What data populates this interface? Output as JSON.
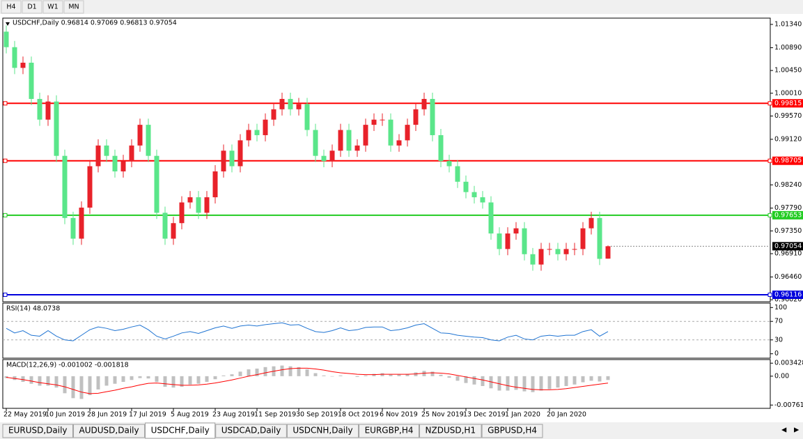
{
  "timeframes": [
    "H4",
    "D1",
    "W1",
    "MN"
  ],
  "tabs": [
    "EURUSD,Daily",
    "AUDUSD,Daily",
    "USDCHF,Daily",
    "USDCAD,Daily",
    "USDCNH,Daily",
    "EURGBP,H4",
    "NZDUSD,H1",
    "GBPUSD,H4"
  ],
  "active_tab": 2,
  "chart_data": [
    {
      "type": "candlestick",
      "title": "USDCHF,Daily  0.96814 0.97069 0.96813 0.97054",
      "up_color": "#e8222a",
      "down_color": "#5ae68a",
      "categories": [
        "22 May 2019",
        null,
        null,
        null,
        null,
        "10 Jun 2019",
        null,
        null,
        null,
        null,
        "28 Jun 2019",
        null,
        null,
        null,
        null,
        "17 Jul 2019",
        null,
        null,
        null,
        null,
        "5 Aug 2019",
        null,
        null,
        null,
        null,
        "23 Aug 2019",
        null,
        null,
        null,
        null,
        "11 Sep 2019",
        null,
        null,
        null,
        null,
        "30 Sep 2019",
        null,
        null,
        null,
        null,
        "18 Oct 2019",
        null,
        null,
        null,
        null,
        "6 Nov 2019",
        null,
        null,
        null,
        null,
        "25 Nov 2019",
        null,
        null,
        null,
        null,
        "13 Dec 2019",
        null,
        null,
        null,
        null,
        "1 Jan 2020",
        null,
        null,
        null,
        null,
        "20 Jan 2020",
        null,
        null,
        null,
        null,
        null,
        null,
        null
      ],
      "values": [
        [
          1.012,
          1.0132,
          1.0078,
          1.009
        ],
        [
          1.009,
          1.0102,
          1.0038,
          1.005
        ],
        [
          1.005,
          1.0072,
          1.0038,
          1.006
        ],
        [
          1.006,
          1.0072,
          0.9978,
          0.999
        ],
        [
          0.999,
          1.0002,
          0.9938,
          0.995
        ],
        [
          0.995,
          0.9997,
          0.9938,
          0.9985
        ],
        [
          0.9985,
          0.9997,
          0.9868,
          0.988
        ],
        [
          0.988,
          0.9892,
          0.9748,
          0.976
        ],
        [
          0.976,
          0.9772,
          0.9708,
          0.972
        ],
        [
          0.972,
          0.9792,
          0.9708,
          0.978
        ],
        [
          0.978,
          0.9872,
          0.9768,
          0.986
        ],
        [
          0.986,
          0.9912,
          0.9848,
          0.99
        ],
        [
          0.99,
          0.9912,
          0.9868,
          0.988
        ],
        [
          0.988,
          0.9892,
          0.9838,
          0.985
        ],
        [
          0.985,
          0.9882,
          0.9838,
          0.987
        ],
        [
          0.987,
          0.9912,
          0.9858,
          0.99
        ],
        [
          0.99,
          0.9952,
          0.9888,
          0.994
        ],
        [
          0.994,
          0.9952,
          0.9868,
          0.988
        ],
        [
          0.988,
          0.9892,
          0.9758,
          0.977
        ],
        [
          0.977,
          0.9782,
          0.9708,
          0.972
        ],
        [
          0.972,
          0.9762,
          0.9708,
          0.975
        ],
        [
          0.975,
          0.9802,
          0.9738,
          0.979
        ],
        [
          0.979,
          0.9812,
          0.9778,
          0.98
        ],
        [
          0.98,
          0.9812,
          0.9758,
          0.977
        ],
        [
          0.977,
          0.9812,
          0.9758,
          0.98
        ],
        [
          0.98,
          0.9862,
          0.9788,
          0.985
        ],
        [
          0.985,
          0.9902,
          0.9838,
          0.989
        ],
        [
          0.989,
          0.9902,
          0.9848,
          0.986
        ],
        [
          0.986,
          0.9922,
          0.9848,
          0.991
        ],
        [
          0.991,
          0.9942,
          0.9898,
          0.993
        ],
        [
          0.993,
          0.9942,
          0.9908,
          0.992
        ],
        [
          0.992,
          0.9962,
          0.9908,
          0.995
        ],
        [
          0.995,
          0.9982,
          0.9938,
          0.997
        ],
        [
          0.997,
          1.0002,
          0.9958,
          0.999
        ],
        [
          0.999,
          1.0002,
          0.9958,
          0.997
        ],
        [
          0.997,
          0.9992,
          0.9958,
          0.998
        ],
        [
          0.998,
          0.9992,
          0.9918,
          0.993
        ],
        [
          0.993,
          0.9942,
          0.9868,
          0.988
        ],
        [
          0.988,
          0.9892,
          0.9858,
          0.987
        ],
        [
          0.987,
          0.9902,
          0.9858,
          0.989
        ],
        [
          0.989,
          0.9942,
          0.9878,
          0.993
        ],
        [
          0.993,
          0.9942,
          0.9878,
          0.989
        ],
        [
          0.989,
          0.9912,
          0.9878,
          0.99
        ],
        [
          0.99,
          0.9952,
          0.9888,
          0.994
        ],
        [
          0.994,
          0.9962,
          0.9928,
          0.995
        ],
        [
          0.995,
          0.9962,
          0.9938,
          0.995
        ],
        [
          0.995,
          0.9962,
          0.9888,
          0.99
        ],
        [
          0.99,
          0.9922,
          0.9888,
          0.991
        ],
        [
          0.991,
          0.9952,
          0.9898,
          0.994
        ],
        [
          0.994,
          0.9982,
          0.9928,
          0.997
        ],
        [
          0.997,
          1.0002,
          0.9958,
          0.999
        ],
        [
          0.999,
          1.0002,
          0.9908,
          0.992
        ],
        [
          0.992,
          0.9932,
          0.9858,
          0.987
        ],
        [
          0.987,
          0.9882,
          0.9848,
          0.986
        ],
        [
          0.986,
          0.9872,
          0.9818,
          0.983
        ],
        [
          0.983,
          0.9842,
          0.9798,
          0.981
        ],
        [
          0.981,
          0.9822,
          0.9788,
          0.98
        ],
        [
          0.98,
          0.9812,
          0.9778,
          0.979
        ],
        [
          0.979,
          0.9802,
          0.9718,
          0.973
        ],
        [
          0.973,
          0.9742,
          0.9688,
          0.97
        ],
        [
          0.97,
          0.9742,
          0.9688,
          0.973
        ],
        [
          0.973,
          0.9752,
          0.9718,
          0.974
        ],
        [
          0.974,
          0.9752,
          0.9678,
          0.969
        ],
        [
          0.969,
          0.9702,
          0.9658,
          0.967
        ],
        [
          0.967,
          0.9712,
          0.9658,
          0.97
        ],
        [
          0.97,
          0.9712,
          0.9688,
          0.97
        ],
        [
          0.97,
          0.9712,
          0.9678,
          0.969
        ],
        [
          0.969,
          0.9712,
          0.9678,
          0.97
        ],
        [
          0.97,
          0.9712,
          0.9688,
          0.97
        ],
        [
          0.97,
          0.9752,
          0.9688,
          0.974
        ],
        [
          0.974,
          0.9772,
          0.9728,
          0.976
        ],
        [
          0.976,
          0.9772,
          0.9669,
          0.9681
        ],
        [
          0.96814,
          0.97069,
          0.96813,
          0.97054
        ]
      ],
      "ylim": [
        0.95995,
        1.01448
      ],
      "yticks": [
        {
          "value": 1.0134,
          "label": "1.01340"
        },
        {
          "value": 1.0089,
          "label": "1.00890"
        },
        {
          "value": 1.0045,
          "label": "1.00450"
        },
        {
          "value": 1.0001,
          "label": "1.00010"
        },
        {
          "value": 0.9957,
          "label": "0.99570"
        },
        {
          "value": 0.9912,
          "label": "0.99120"
        },
        {
          "value": 0.9824,
          "label": "0.98240"
        },
        {
          "value": 0.9779,
          "label": "0.97790"
        },
        {
          "value": 0.9735,
          "label": "0.97350"
        },
        {
          "value": 0.9691,
          "label": "0.96910"
        },
        {
          "value": 0.9646,
          "label": "0.96460"
        },
        {
          "value": 0.9602,
          "label": "0.96020"
        }
      ],
      "levels": [
        {
          "value": 0.99815,
          "color": "#ff0000"
        },
        {
          "value": 0.98705,
          "color": "#ff0000"
        },
        {
          "value": 0.97653,
          "color": "#22cc22"
        },
        {
          "value": 0.96116,
          "color": "#0000dd"
        }
      ]
    },
    {
      "type": "line",
      "title": "RSI(14) 48.0738",
      "color": "#1e73d2",
      "values": [
        55,
        45,
        50,
        40,
        38,
        50,
        38,
        30,
        28,
        40,
        52,
        58,
        55,
        50,
        53,
        58,
        62,
        52,
        38,
        32,
        38,
        45,
        48,
        44,
        50,
        56,
        60,
        55,
        60,
        62,
        60,
        63,
        65,
        67,
        62,
        63,
        55,
        48,
        46,
        50,
        56,
        50,
        52,
        57,
        58,
        58,
        50,
        52,
        56,
        62,
        65,
        55,
        45,
        44,
        40,
        38,
        36,
        35,
        30,
        28,
        36,
        40,
        32,
        30,
        38,
        40,
        38,
        40,
        40,
        48,
        52,
        38,
        48.0738
      ],
      "ylim": [
        -8,
        108
      ],
      "yticks": [
        100,
        70,
        30,
        0
      ],
      "dashed_levels": [
        70,
        30
      ]
    },
    {
      "type": "combo",
      "title": "MACD(12,26,9) -0.001002 -0.001818",
      "series": [
        {
          "type": "bar",
          "color": "#c0c0c0",
          "values": [
            -0.0005,
            -0.001,
            -0.0015,
            -0.002,
            -0.0025,
            -0.0025,
            -0.003,
            -0.0045,
            -0.0058,
            -0.006,
            -0.005,
            -0.0035,
            -0.0025,
            -0.002,
            -0.0015,
            -0.001,
            -0.0005,
            -0.0006,
            -0.0015,
            -0.0028,
            -0.003,
            -0.0028,
            -0.0022,
            -0.002,
            -0.0015,
            -0.0008,
            0.0002,
            0.0005,
            0.0012,
            0.0018,
            0.002,
            0.0024,
            0.0026,
            0.0028,
            0.0026,
            0.0024,
            0.0018,
            0.0008,
            0.0002,
            -0.0001,
            0.0002,
            0,
            -0.0002,
            0.0002,
            0.0006,
            0.0008,
            0.0004,
            0.0004,
            0.0006,
            0.001,
            0.0014,
            0.0012,
            0.0004,
            -0.0004,
            -0.0012,
            -0.0018,
            -0.0022,
            -0.0026,
            -0.0032,
            -0.0038,
            -0.0038,
            -0.0036,
            -0.004,
            -0.0042,
            -0.0038,
            -0.0034,
            -0.003,
            -0.0026,
            -0.0022,
            -0.0016,
            -0.0012,
            -0.0014,
            -0.001002
          ]
        },
        {
          "type": "line",
          "color": "#ff0000",
          "values": [
            -0.0003,
            -0.0006,
            -0.0009,
            -0.0013,
            -0.0017,
            -0.002,
            -0.0023,
            -0.0028,
            -0.0035,
            -0.0042,
            -0.0046,
            -0.0045,
            -0.0041,
            -0.0037,
            -0.0032,
            -0.0028,
            -0.0023,
            -0.0019,
            -0.0018,
            -0.002,
            -0.0022,
            -0.0024,
            -0.0024,
            -0.0023,
            -0.0021,
            -0.0018,
            -0.0014,
            -0.001,
            -0.0005,
            0,
            0.0004,
            0.0009,
            0.0013,
            0.0017,
            0.002,
            0.0021,
            0.0021,
            0.0019,
            0.0016,
            0.0012,
            0.0009,
            0.0007,
            0.0005,
            0.0004,
            0.0004,
            0.0005,
            0.0005,
            0.0005,
            0.0005,
            0.0006,
            0.0008,
            0.0009,
            0.0008,
            0.0006,
            0.0002,
            -0.0002,
            -0.0006,
            -0.001,
            -0.0015,
            -0.002,
            -0.0025,
            -0.0029,
            -0.0032,
            -0.0035,
            -0.0036,
            -0.0036,
            -0.0035,
            -0.0033,
            -0.003,
            -0.0027,
            -0.0024,
            -0.0021,
            -0.001818
          ]
        }
      ],
      "ylim": [
        -0.0083,
        0.0042
      ],
      "yticks": [
        {
          "value": 0.003428,
          "label": "0.003428"
        },
        {
          "value": 0,
          "label": "0.00"
        },
        {
          "value": -0.007615,
          "label": "-0.007615"
        }
      ]
    }
  ]
}
